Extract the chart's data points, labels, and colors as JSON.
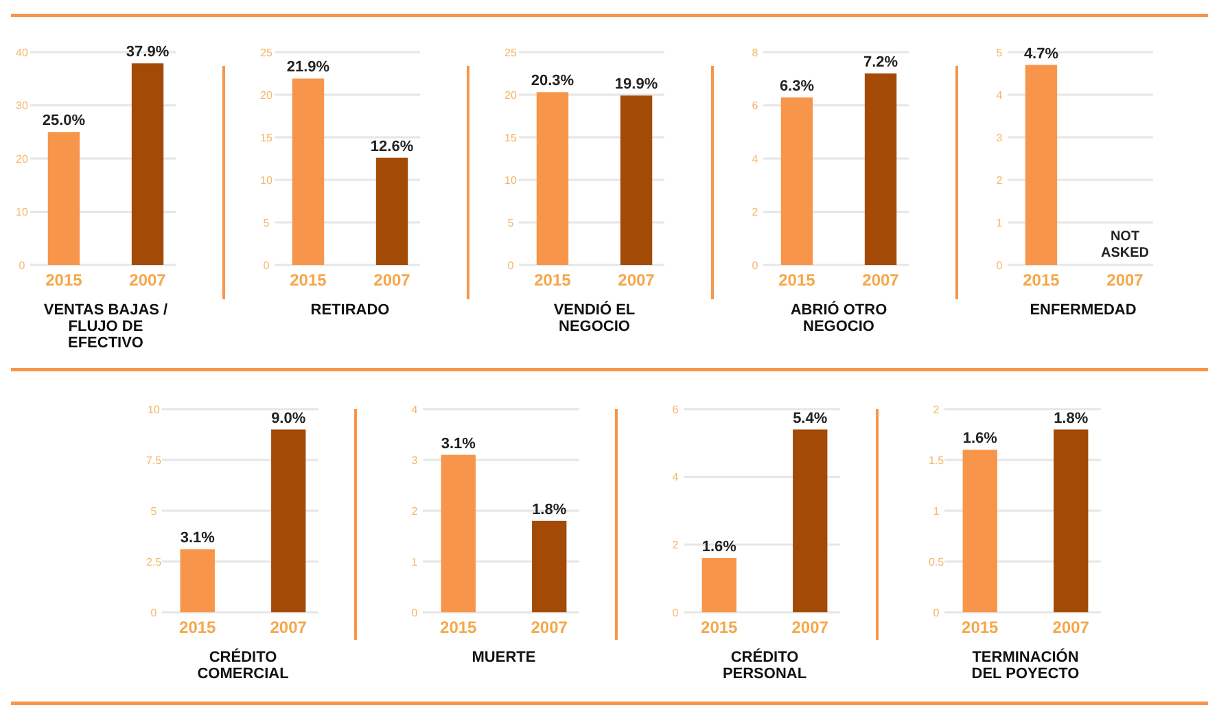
{
  "chart_data": [
    {
      "type": "bar",
      "xlabel": "VENTAS BAJAS / FLUJO DE EFECTIVO",
      "categories": [
        "2015",
        "2007"
      ],
      "values": [
        25.0,
        37.9
      ],
      "colors": [
        "#f7964a",
        "#a34a06"
      ],
      "value_labels": [
        "25.0%",
        "37.9%"
      ],
      "ylim": [
        0,
        40
      ],
      "yticks": [
        0,
        10,
        20,
        30,
        40
      ],
      "grid": "y"
    },
    {
      "type": "bar",
      "xlabel": "RETIRADO",
      "categories": [
        "2015",
        "2007"
      ],
      "values": [
        21.9,
        12.6
      ],
      "colors": [
        "#f7964a",
        "#a34a06"
      ],
      "value_labels": [
        "21.9%",
        "12.6%"
      ],
      "ylim": [
        0,
        25
      ],
      "yticks": [
        0,
        5,
        10,
        15,
        20,
        25
      ],
      "grid": "y"
    },
    {
      "type": "bar",
      "xlabel": "VENDIÓ EL NEGOCIO",
      "categories": [
        "2015",
        "2007"
      ],
      "values": [
        20.3,
        19.9
      ],
      "colors": [
        "#f7964a",
        "#a34a06"
      ],
      "value_labels": [
        "20.3%",
        "19.9%"
      ],
      "ylim": [
        0,
        25
      ],
      "yticks": [
        0,
        5,
        10,
        15,
        20,
        25
      ],
      "grid": "y"
    },
    {
      "type": "bar",
      "xlabel": "ABRIÓ OTRO NEGOCIO",
      "categories": [
        "2015",
        "2007"
      ],
      "values": [
        6.3,
        7.2
      ],
      "colors": [
        "#f7964a",
        "#a34a06"
      ],
      "value_labels": [
        "6.3%",
        "7.2%"
      ],
      "ylim": [
        0,
        8
      ],
      "yticks": [
        0,
        2,
        4,
        6,
        8
      ],
      "grid": "y"
    },
    {
      "type": "bar",
      "xlabel": "ENFERMEDAD",
      "categories": [
        "2015",
        "2007"
      ],
      "values": [
        4.7,
        null
      ],
      "colors": [
        "#f7964a",
        null
      ],
      "value_labels": [
        "4.7%",
        null
      ],
      "ylim": [
        0,
        5
      ],
      "yticks": [
        0,
        1,
        2,
        3,
        4,
        5
      ],
      "grid": "y",
      "annotations": [
        "NOT ASKED"
      ]
    },
    {
      "type": "bar",
      "xlabel": "CRÉDITO COMERCIAL",
      "categories": [
        "2015",
        "2007"
      ],
      "values": [
        3.1,
        9.0
      ],
      "colors": [
        "#f7964a",
        "#a34a06"
      ],
      "value_labels": [
        "3.1%",
        "9.0%"
      ],
      "ylim": [
        0,
        10
      ],
      "yticks": [
        0,
        2.5,
        5,
        7.5,
        10
      ],
      "grid": "y"
    },
    {
      "type": "bar",
      "xlabel": "MUERTE",
      "categories": [
        "2015",
        "2007"
      ],
      "values": [
        3.1,
        1.8
      ],
      "colors": [
        "#f7964a",
        "#a34a06"
      ],
      "value_labels": [
        "3.1%",
        "1.8%"
      ],
      "ylim": [
        0,
        4
      ],
      "yticks": [
        0,
        1,
        2,
        3,
        4
      ],
      "grid": "y"
    },
    {
      "type": "bar",
      "xlabel": "CRÉDITO PERSONAL",
      "categories": [
        "2015",
        "2007"
      ],
      "values": [
        1.6,
        5.4
      ],
      "colors": [
        "#f7964a",
        "#a34a06"
      ],
      "value_labels": [
        "1.6%",
        "5.4%"
      ],
      "ylim": [
        0,
        6
      ],
      "yticks": [
        0,
        2,
        4,
        6
      ],
      "grid": "y"
    },
    {
      "type": "bar",
      "xlabel": "TERMINACIÓN DEL POYECTO",
      "categories": [
        "2015",
        "2007"
      ],
      "values": [
        1.6,
        1.8
      ],
      "colors": [
        "#f7964a",
        "#a34a06"
      ],
      "value_labels": [
        "1.6%",
        "1.8%"
      ],
      "ylim": [
        0,
        2
      ],
      "yticks": [
        0,
        0.5,
        1,
        1.5,
        2
      ],
      "grid": "y"
    }
  ]
}
